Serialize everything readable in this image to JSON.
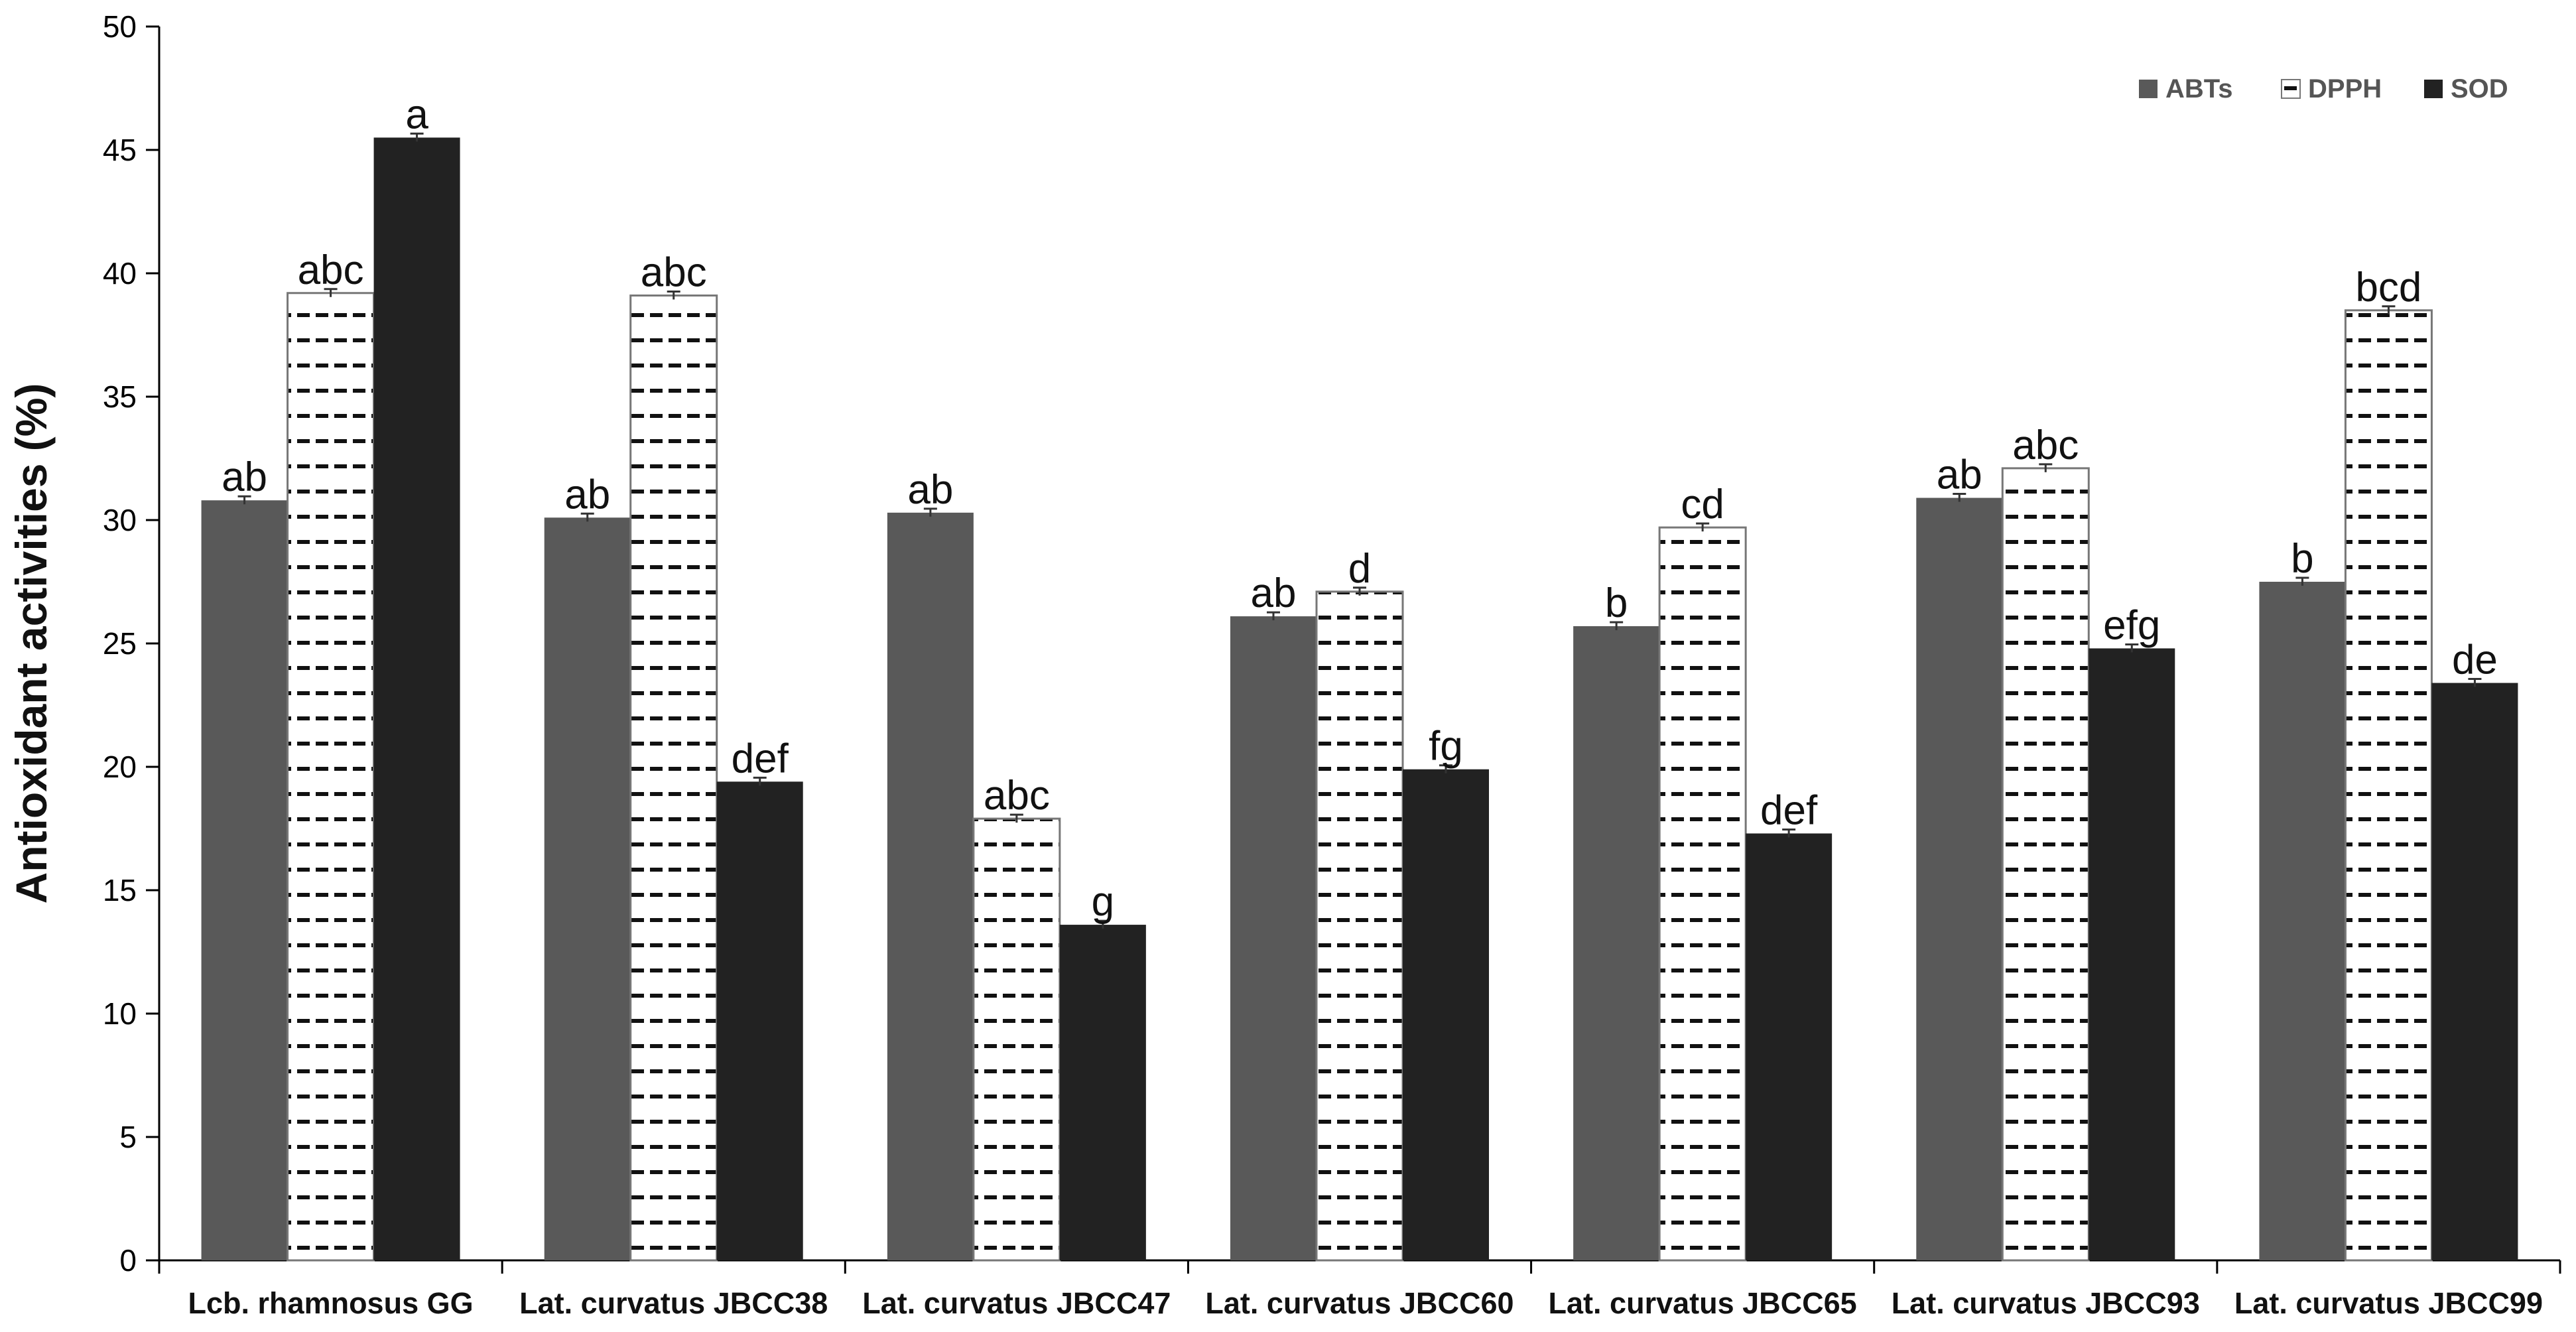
{
  "chart_data": {
    "type": "bar",
    "title": "",
    "xlabel": "",
    "ylabel": "Antioxidant activities (%)",
    "ylim": [
      0,
      50
    ],
    "ytick_step": 5,
    "grid": false,
    "legend_position": "top-right",
    "categories": [
      "Lcb. rhamnosus GG",
      "Lat. curvatus JBCC38",
      "Lat. curvatus JBCC47",
      "Lat. curvatus JBCC60",
      "Lat. curvatus JBCC65",
      "Lat. curvatus JBCC93",
      "Lat. curvatus JBCC99"
    ],
    "series": [
      {
        "name": "ABTs",
        "color": "#595959",
        "pattern": "solid",
        "values": [
          30.8,
          30.1,
          30.3,
          26.1,
          25.7,
          30.9,
          27.5
        ],
        "labels": [
          "ab",
          "ab",
          "ab",
          "ab",
          "b",
          "ab",
          "b"
        ]
      },
      {
        "name": "DPPH",
        "color": "#ffffff",
        "pattern": "dashes",
        "values": [
          39.2,
          39.1,
          17.9,
          27.1,
          29.7,
          32.1,
          38.5
        ],
        "labels": [
          "abc",
          "abc",
          "abc",
          "d",
          "cd",
          "abc",
          "bcd"
        ]
      },
      {
        "name": "SOD",
        "color": "#222222",
        "pattern": "solid",
        "values": [
          45.5,
          19.4,
          13.6,
          19.9,
          17.3,
          24.8,
          23.4
        ],
        "labels": [
          "a",
          "def",
          "g",
          "fg",
          "def",
          "efg",
          "de"
        ]
      }
    ]
  }
}
